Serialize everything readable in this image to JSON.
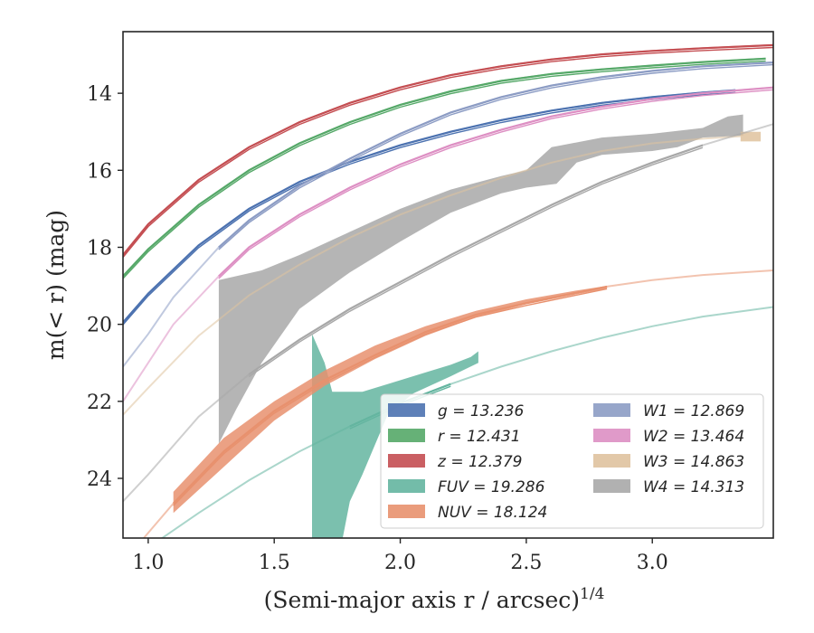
{
  "chart_data": {
    "type": "line",
    "xlabel": "(Semi-major axis r / arcsec)",
    "xlabel_superscript": "1/4",
    "ylabel": "m(< r) (mag)",
    "xlim": [
      0.9,
      3.48
    ],
    "ylim": [
      25.55,
      12.4
    ],
    "y_inverted": true,
    "grid": false,
    "legend_position": "lower-right",
    "x_ticks": [
      "1.0",
      "1.5",
      "2.0",
      "2.5",
      "3.0"
    ],
    "x_tick_values": [
      1.0,
      1.5,
      2.0,
      2.5,
      3.0
    ],
    "y_ticks": [
      "14",
      "16",
      "18",
      "20",
      "22",
      "24"
    ],
    "y_tick_values": [
      14,
      16,
      18,
      20,
      22,
      24
    ],
    "series": [
      {
        "name": "g = 13.236",
        "color": "#4c72b0",
        "measured_range": [
          0.9,
          3.33
        ],
        "model_curve": [
          [
            0.9,
            19.95
          ],
          [
            1.0,
            19.2
          ],
          [
            1.2,
            17.95
          ],
          [
            1.4,
            17.0
          ],
          [
            1.6,
            16.3
          ],
          [
            1.8,
            15.78
          ],
          [
            2.0,
            15.35
          ],
          [
            2.2,
            15.0
          ],
          [
            2.4,
            14.7
          ],
          [
            2.6,
            14.45
          ],
          [
            2.8,
            14.25
          ],
          [
            3.0,
            14.1
          ],
          [
            3.2,
            13.98
          ],
          [
            3.33,
            13.92
          ]
        ]
      },
      {
        "name": "r = 12.431",
        "color": "#55a868",
        "measured_range": [
          0.9,
          3.45
        ],
        "model_curve": [
          [
            0.9,
            18.75
          ],
          [
            1.0,
            18.05
          ],
          [
            1.2,
            16.9
          ],
          [
            1.4,
            16.0
          ],
          [
            1.6,
            15.3
          ],
          [
            1.8,
            14.75
          ],
          [
            2.0,
            14.3
          ],
          [
            2.2,
            13.95
          ],
          [
            2.4,
            13.68
          ],
          [
            2.6,
            13.5
          ],
          [
            2.8,
            13.38
          ],
          [
            3.0,
            13.28
          ],
          [
            3.2,
            13.19
          ],
          [
            3.45,
            13.1
          ]
        ]
      },
      {
        "name": "z = 12.379",
        "color": "#c44e52",
        "measured_range": [
          0.9,
          3.48
        ],
        "model_curve": [
          [
            0.9,
            18.2
          ],
          [
            1.0,
            17.4
          ],
          [
            1.2,
            16.25
          ],
          [
            1.4,
            15.4
          ],
          [
            1.6,
            14.75
          ],
          [
            1.8,
            14.25
          ],
          [
            2.0,
            13.85
          ],
          [
            2.2,
            13.53
          ],
          [
            2.4,
            13.3
          ],
          [
            2.6,
            13.12
          ],
          [
            2.8,
            12.99
          ],
          [
            3.0,
            12.9
          ],
          [
            3.2,
            12.83
          ],
          [
            3.48,
            12.75
          ]
        ]
      },
      {
        "name": "FUV = 19.286",
        "color": "#64b5a0",
        "measured_range": [
          1.65,
          2.31
        ],
        "model_curve": [
          [
            1.0,
            25.8
          ],
          [
            1.2,
            24.9
          ],
          [
            1.4,
            24.05
          ],
          [
            1.6,
            23.3
          ],
          [
            1.8,
            22.65
          ],
          [
            2.0,
            22.05
          ],
          [
            2.2,
            21.55
          ],
          [
            2.4,
            21.1
          ],
          [
            2.6,
            20.7
          ],
          [
            2.8,
            20.35
          ],
          [
            3.0,
            20.05
          ],
          [
            3.2,
            19.8
          ],
          [
            3.48,
            19.55
          ]
        ]
      },
      {
        "name": "NUV = 18.124",
        "color": "#e8916e",
        "measured_range": [
          1.1,
          2.82
        ],
        "model_curve": [
          [
            0.95,
            25.8
          ],
          [
            1.1,
            24.65
          ],
          [
            1.3,
            23.3
          ],
          [
            1.5,
            22.25
          ],
          [
            1.7,
            21.45
          ],
          [
            1.9,
            20.8
          ],
          [
            2.1,
            20.2
          ],
          [
            2.3,
            19.75
          ],
          [
            2.5,
            19.45
          ],
          [
            2.7,
            19.18
          ],
          [
            2.82,
            19.02
          ],
          [
            3.0,
            18.85
          ],
          [
            3.2,
            18.72
          ],
          [
            3.48,
            18.6
          ]
        ]
      },
      {
        "name": "W1 = 12.869",
        "color": "#8c9cc4",
        "measured_range": [
          1.28,
          3.48
        ],
        "model_curve": [
          [
            0.9,
            21.1
          ],
          [
            1.0,
            20.25
          ],
          [
            1.1,
            19.3
          ],
          [
            1.28,
            18.0
          ],
          [
            1.4,
            17.3
          ],
          [
            1.6,
            16.4
          ],
          [
            1.8,
            15.7
          ],
          [
            2.0,
            15.05
          ],
          [
            2.2,
            14.5
          ],
          [
            2.4,
            14.1
          ],
          [
            2.6,
            13.8
          ],
          [
            2.8,
            13.58
          ],
          [
            3.0,
            13.42
          ],
          [
            3.2,
            13.3
          ],
          [
            3.48,
            13.2
          ]
        ]
      },
      {
        "name": "W2 = 13.464",
        "color": "#dd8fc3",
        "measured_range": [
          1.28,
          3.48
        ],
        "model_curve": [
          [
            0.9,
            22.0
          ],
          [
            1.0,
            21.0
          ],
          [
            1.1,
            20.0
          ],
          [
            1.28,
            18.75
          ],
          [
            1.4,
            18.0
          ],
          [
            1.6,
            17.15
          ],
          [
            1.8,
            16.45
          ],
          [
            2.0,
            15.85
          ],
          [
            2.2,
            15.35
          ],
          [
            2.4,
            14.95
          ],
          [
            2.6,
            14.6
          ],
          [
            2.8,
            14.35
          ],
          [
            3.0,
            14.15
          ],
          [
            3.2,
            14.0
          ],
          [
            3.48,
            13.85
          ]
        ]
      },
      {
        "name": "W3 = 14.863",
        "color": "#dfc29e",
        "measured_range": [
          3.35,
          3.43
        ],
        "model_curve": [
          [
            0.9,
            22.35
          ],
          [
            1.0,
            21.65
          ],
          [
            1.2,
            20.3
          ],
          [
            1.4,
            19.25
          ],
          [
            1.6,
            18.45
          ],
          [
            1.8,
            17.75
          ],
          [
            2.0,
            17.15
          ],
          [
            2.2,
            16.65
          ],
          [
            2.4,
            16.2
          ],
          [
            2.6,
            15.8
          ],
          [
            2.8,
            15.5
          ],
          [
            3.0,
            15.3
          ],
          [
            3.2,
            15.18
          ],
          [
            3.35,
            15.12
          ]
        ]
      },
      {
        "name": "W4 = 14.313",
        "color": "#a8a8a8",
        "measured_range": [
          1.28,
          3.36
        ],
        "model_curve": [
          [
            0.9,
            24.6
          ],
          [
            1.0,
            23.9
          ],
          [
            1.2,
            22.4
          ],
          [
            1.4,
            21.3
          ],
          [
            1.6,
            20.4
          ],
          [
            1.8,
            19.6
          ],
          [
            2.0,
            18.9
          ],
          [
            2.2,
            18.2
          ],
          [
            2.4,
            17.55
          ],
          [
            2.6,
            16.9
          ],
          [
            2.8,
            16.3
          ],
          [
            3.0,
            15.8
          ],
          [
            3.2,
            15.35
          ],
          [
            3.48,
            14.8
          ]
        ]
      }
    ],
    "bands": [
      {
        "name": "W4 = 14.313",
        "color": "#a8a8a8",
        "upper": [
          [
            1.28,
            18.85
          ],
          [
            1.45,
            18.6
          ],
          [
            1.6,
            18.2
          ],
          [
            1.8,
            17.6
          ],
          [
            2.0,
            17.0
          ],
          [
            2.2,
            16.5
          ],
          [
            2.4,
            16.15
          ],
          [
            2.5,
            16.0
          ],
          [
            2.6,
            15.4
          ],
          [
            2.8,
            15.15
          ],
          [
            3.0,
            15.05
          ],
          [
            3.2,
            14.9
          ],
          [
            3.3,
            14.6
          ],
          [
            3.36,
            14.55
          ]
        ],
        "lower": [
          [
            3.36,
            15.1
          ],
          [
            3.2,
            15.15
          ],
          [
            3.1,
            15.4
          ],
          [
            3.0,
            15.5
          ],
          [
            2.9,
            15.55
          ],
          [
            2.8,
            15.6
          ],
          [
            2.7,
            15.8
          ],
          [
            2.62,
            16.35
          ],
          [
            2.5,
            16.45
          ],
          [
            2.4,
            16.6
          ],
          [
            2.2,
            17.1
          ],
          [
            2.0,
            17.85
          ],
          [
            1.8,
            18.65
          ],
          [
            1.6,
            19.6
          ],
          [
            1.45,
            21.0
          ],
          [
            1.35,
            22.2
          ],
          [
            1.28,
            23.1
          ]
        ]
      },
      {
        "name": "FUV = 19.286",
        "color": "#64b5a0",
        "upper": [
          [
            1.65,
            20.25
          ],
          [
            1.7,
            21.0
          ],
          [
            1.73,
            21.75
          ],
          [
            1.85,
            21.75
          ],
          [
            1.95,
            21.55
          ],
          [
            2.1,
            21.25
          ],
          [
            2.2,
            21.05
          ],
          [
            2.28,
            20.85
          ],
          [
            2.31,
            20.7
          ]
        ],
        "lower": [
          [
            2.31,
            21.0
          ],
          [
            2.2,
            21.35
          ],
          [
            2.05,
            21.8
          ],
          [
            1.95,
            22.35
          ],
          [
            1.85,
            23.9
          ],
          [
            1.8,
            24.6
          ],
          [
            1.77,
            25.6
          ],
          [
            1.65,
            25.6
          ]
        ]
      },
      {
        "name": "NUV = 18.124",
        "color": "#e8916e",
        "upper": [
          [
            1.1,
            24.35
          ],
          [
            1.3,
            22.95
          ],
          [
            1.5,
            22.0
          ],
          [
            1.7,
            21.2
          ],
          [
            1.9,
            20.55
          ],
          [
            2.1,
            20.05
          ],
          [
            2.3,
            19.65
          ],
          [
            2.5,
            19.35
          ],
          [
            2.7,
            19.12
          ],
          [
            2.82,
            19.0
          ]
        ],
        "lower": [
          [
            2.82,
            19.08
          ],
          [
            2.7,
            19.22
          ],
          [
            2.5,
            19.48
          ],
          [
            2.3,
            19.82
          ],
          [
            2.1,
            20.3
          ],
          [
            1.9,
            20.9
          ],
          [
            1.7,
            21.6
          ],
          [
            1.5,
            22.5
          ],
          [
            1.3,
            23.7
          ],
          [
            1.1,
            24.9
          ]
        ]
      },
      {
        "name": "W3 = 14.863",
        "color": "#dfc29e",
        "upper": [
          [
            3.35,
            15.0
          ],
          [
            3.43,
            15.0
          ]
        ],
        "lower": [
          [
            3.43,
            15.25
          ],
          [
            3.35,
            15.25
          ]
        ]
      }
    ],
    "legend": {
      "left_column": [
        "g = 13.236",
        "r = 12.431",
        "z = 12.379",
        "FUV = 19.286",
        "NUV = 18.124"
      ],
      "right_column": [
        "W1 = 12.869",
        "W2 = 13.464",
        "W3 = 14.863",
        "W4 = 14.313"
      ]
    }
  }
}
